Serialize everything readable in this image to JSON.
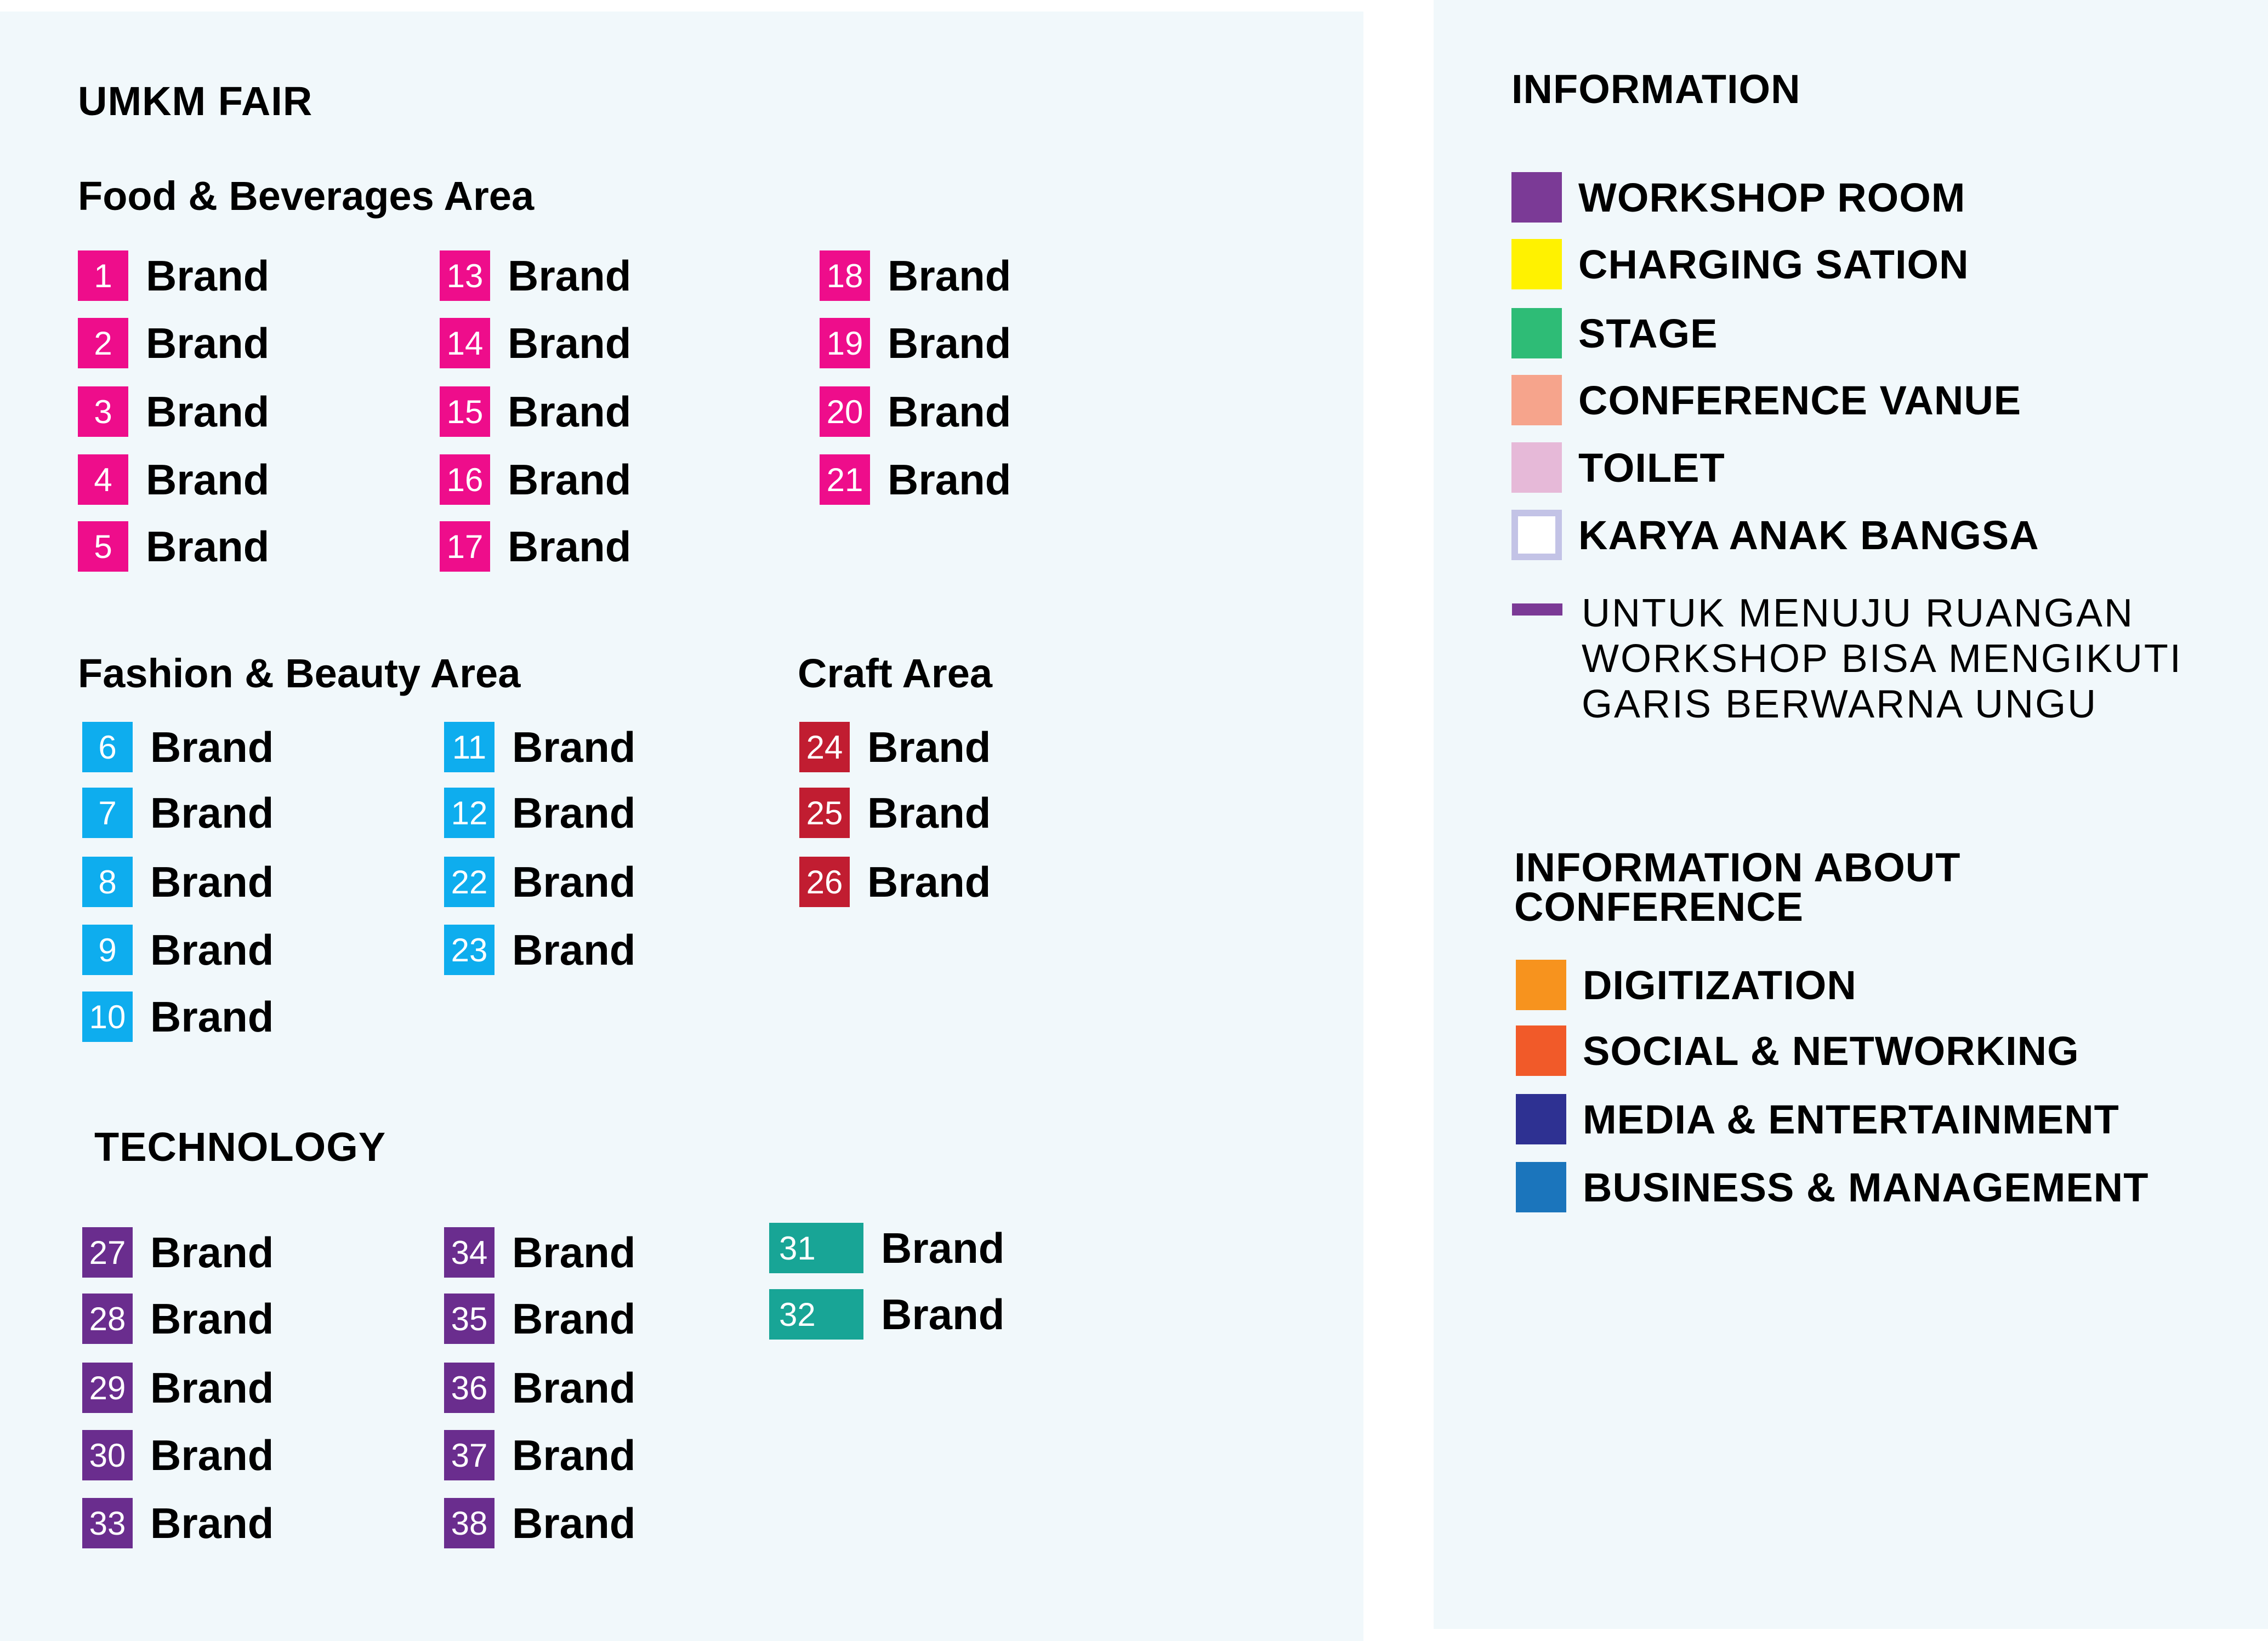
{
  "title": "UMKM FAIR",
  "brand_label": "Brand",
  "colors": {
    "food": "#ee0d8b",
    "fashion": "#0eadee",
    "craft": "#c11d31",
    "technology": "#6a2d8e",
    "technology_alt": "#18a596",
    "panel_bg": "#f1f8fb"
  },
  "areas": {
    "food": {
      "title": "Food & Beverages Area",
      "numbers": [
        "1",
        "2",
        "3",
        "4",
        "5",
        "13",
        "14",
        "15",
        "16",
        "17",
        "18",
        "19",
        "20",
        "21"
      ]
    },
    "fashion": {
      "title": "Fashion & Beauty Area",
      "numbers": [
        "6",
        "7",
        "8",
        "9",
        "10",
        "11",
        "12",
        "22",
        "23"
      ]
    },
    "craft": {
      "title": "Craft Area",
      "numbers": [
        "24",
        "25",
        "26"
      ]
    },
    "technology": {
      "title": "TECHNOLOGY",
      "numbers": [
        "27",
        "28",
        "29",
        "30",
        "33",
        "34",
        "35",
        "36",
        "37",
        "38",
        "31",
        "32"
      ]
    }
  },
  "information": {
    "title": "INFORMATION",
    "items": [
      {
        "label": "WORKSHOP ROOM",
        "color": "#7b3a96"
      },
      {
        "label": "CHARGING SATION",
        "color": "#fff200"
      },
      {
        "label": "STAGE",
        "color": "#2ebc76"
      },
      {
        "label": "CONFERENCE VANUE",
        "color": "#f6a48c"
      },
      {
        "label": "TOILET",
        "color": "#e6b9d8"
      },
      {
        "label": "KARYA ANAK BANGSA",
        "color": "#c3c3e6"
      }
    ],
    "route_note": {
      "color": "#7b3a96",
      "lines": [
        "UNTUK MENUJU RUANGAN",
        "WORKSHOP BISA MENGIKUTI",
        "GARIS BERWARNA UNGU"
      ]
    }
  },
  "conference": {
    "title_lines": [
      "INFORMATION ABOUT",
      "CONFERENCE"
    ],
    "items": [
      {
        "label": "DIGITIZATION",
        "color": "#f7931e"
      },
      {
        "label": "SOCIAL & NETWORKING",
        "color": "#f15a29"
      },
      {
        "label": "MEDIA & ENTERTAINMENT",
        "color": "#2e3192"
      },
      {
        "label": "BUSINESS & MANAGEMENT",
        "color": "#1b75bc"
      }
    ]
  }
}
